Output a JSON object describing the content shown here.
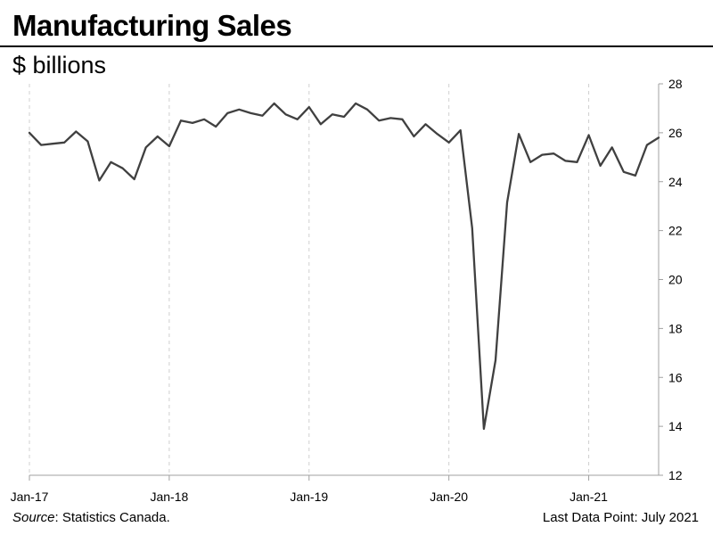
{
  "chart_data": {
    "type": "line",
    "title": "Manufacturing Sales",
    "ylabel": "$ billions",
    "ylim": [
      12,
      28
    ],
    "yticks": [
      12,
      14,
      16,
      18,
      20,
      22,
      24,
      26,
      28
    ],
    "y_axis_side": "right",
    "grid": "vertical dashed at January of each year",
    "xlim": [
      "Jan-17",
      "Jul-21"
    ],
    "xticks": [
      "Jan-17",
      "Jan-18",
      "Jan-19",
      "Jan-20",
      "Jan-21"
    ],
    "line_color": "#404040",
    "x": [
      "Jan-17",
      "Feb-17",
      "Mar-17",
      "Apr-17",
      "May-17",
      "Jun-17",
      "Jul-17",
      "Aug-17",
      "Sep-17",
      "Oct-17",
      "Nov-17",
      "Dec-17",
      "Jan-18",
      "Feb-18",
      "Mar-18",
      "Apr-18",
      "May-18",
      "Jun-18",
      "Jul-18",
      "Aug-18",
      "Sep-18",
      "Oct-18",
      "Nov-18",
      "Dec-18",
      "Jan-19",
      "Feb-19",
      "Mar-19",
      "Apr-19",
      "May-19",
      "Jun-19",
      "Jul-19",
      "Aug-19",
      "Sep-19",
      "Oct-19",
      "Nov-19",
      "Dec-19",
      "Jan-20",
      "Feb-20",
      "Mar-20",
      "Apr-20",
      "May-20",
      "Jun-20",
      "Jul-20",
      "Aug-20",
      "Sep-20",
      "Oct-20",
      "Nov-20",
      "Dec-20",
      "Jan-21",
      "Feb-21",
      "Mar-21",
      "Apr-21",
      "May-21",
      "Jun-21",
      "Jul-21"
    ],
    "values": [
      26.0,
      25.5,
      25.55,
      25.6,
      26.05,
      25.65,
      24.05,
      24.8,
      24.55,
      24.1,
      25.4,
      25.85,
      25.45,
      26.5,
      26.4,
      26.55,
      26.25,
      26.8,
      26.95,
      26.8,
      26.7,
      27.2,
      26.75,
      26.55,
      27.05,
      26.35,
      26.75,
      26.65,
      27.2,
      26.95,
      26.5,
      26.6,
      26.55,
      25.85,
      26.35,
      25.95,
      25.6,
      26.1,
      22.1,
      13.9,
      16.7,
      23.15,
      25.95,
      24.8,
      25.1,
      25.15,
      24.85,
      24.8,
      25.9,
      24.65,
      25.4,
      24.4,
      24.25,
      25.5,
      25.8
    ]
  },
  "footer": {
    "source_label": "Source",
    "source_text": ": Statistics Canada.",
    "last_data_point": "Last Data Point: July 2021"
  }
}
